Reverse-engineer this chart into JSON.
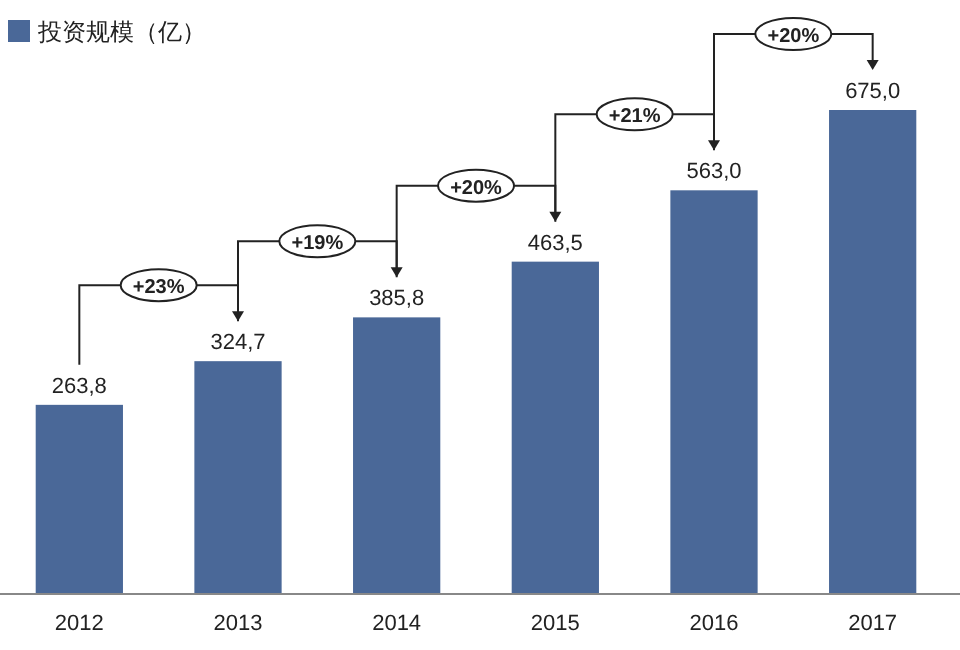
{
  "chart_data": {
    "type": "bar",
    "categories": [
      "2012",
      "2013",
      "2014",
      "2015",
      "2016",
      "2017"
    ],
    "series": [
      {
        "name": "投资规模（亿）",
        "color": "#4a6898",
        "values": [
          263.8,
          324.7,
          385.8,
          463.5,
          563.0,
          675.0
        ],
        "value_labels": [
          "263,8",
          "324,7",
          "385,8",
          "463,5",
          "563,0",
          "675,0"
        ]
      }
    ],
    "annotations": [
      "+23%",
      "+19%",
      "+20%",
      "+21%",
      "+20%"
    ],
    "legend": "top left"
  }
}
